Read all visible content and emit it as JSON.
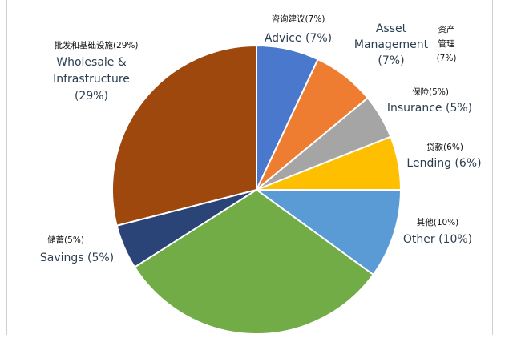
{
  "chart_data": {
    "type": "pie",
    "start_angle_deg": 0,
    "direction": "clockwise",
    "slices": [
      {
        "key": "advice",
        "value": 7,
        "color": "#4a78cd",
        "cn_lines": [
          "咨询建议(7%)"
        ],
        "en_lines": [
          "Advice (7%)"
        ]
      },
      {
        "key": "asset-management",
        "value": 7,
        "color": "#ee7d31",
        "cn_lines": [
          "资产",
          "管理",
          "(7%)"
        ],
        "en_lines": [
          "Asset",
          "Management",
          "(7%)"
        ]
      },
      {
        "key": "insurance",
        "value": 5,
        "color": "#a5a5a5",
        "cn_lines": [
          "保险(5%)"
        ],
        "en_lines": [
          "Insurance (5%)"
        ]
      },
      {
        "key": "lending",
        "value": 6,
        "color": "#fdbf00",
        "cn_lines": [
          "贷款(6%)"
        ],
        "en_lines": [
          "Lending (6%)"
        ]
      },
      {
        "key": "other",
        "value": 10,
        "color": "#5b9bd5",
        "cn_lines": [
          "其他(10%)"
        ],
        "en_lines": [
          "Other (10%)"
        ]
      },
      {
        "key": "unlabeled",
        "value": 31,
        "color": "#71ac47",
        "cn_lines": [],
        "en_lines": []
      },
      {
        "key": "savings",
        "value": 5,
        "color": "#2a4478",
        "cn_lines": [
          "储蓄(5%)"
        ],
        "en_lines": [
          "Savings (5%)"
        ]
      },
      {
        "key": "wholesale-infrastructure",
        "value": 29,
        "color": "#9e480e",
        "cn_lines": [
          "批发和基础设施(29%)"
        ],
        "en_lines": [
          "Wholesale &",
          "Infrastructure",
          "(29%)"
        ]
      }
    ]
  }
}
